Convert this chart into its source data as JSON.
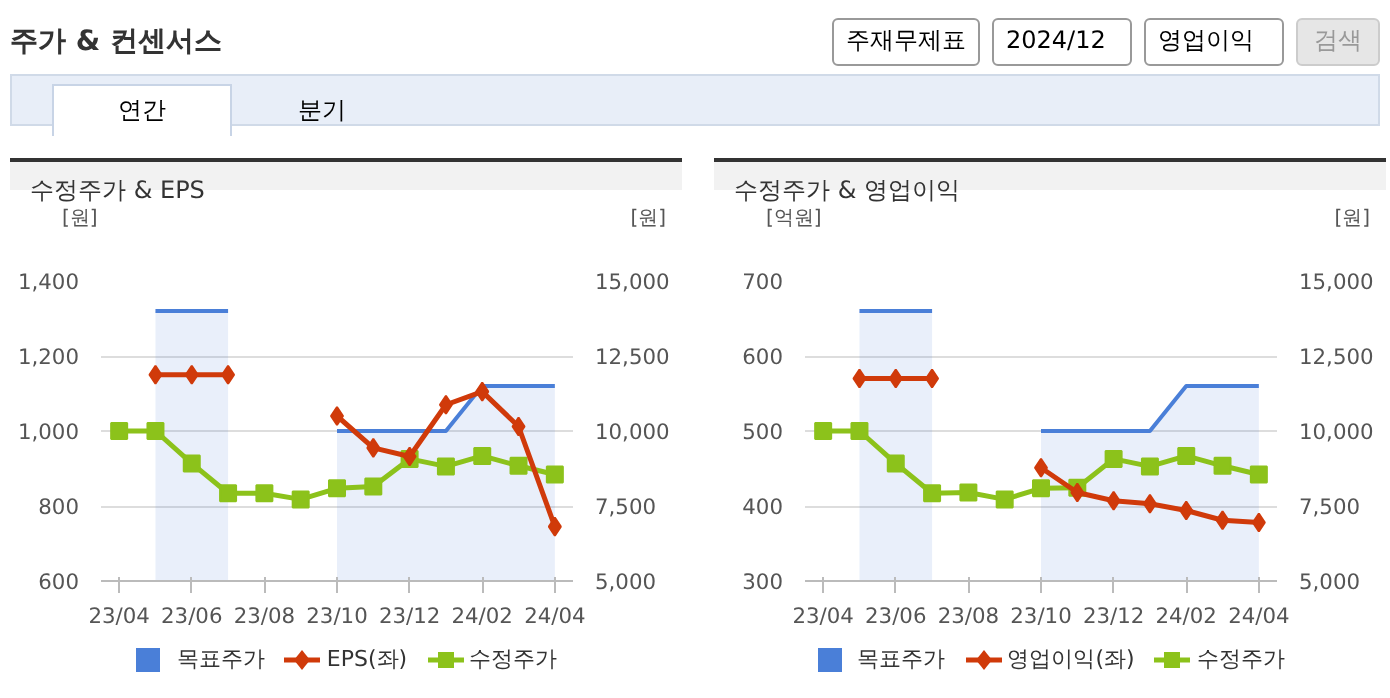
{
  "chart_data": [
    {
      "type": "other",
      "title": "주가 & 컨센서스",
      "annotations": [
        "주재무제표",
        "2024/12",
        "영업이익",
        "검색",
        "연간",
        "분기"
      ]
    },
    {
      "type": "line",
      "title": "수정주가 & EPS",
      "ylabel": "[원]",
      "y2label": "[원]",
      "categories": [
        "23/04",
        null,
        "23/06",
        null,
        "23/08",
        null,
        "23/10",
        null,
        "23/12",
        null,
        "24/02",
        null,
        "24/04"
      ],
      "ylim": [
        600,
        1400
      ],
      "yticks": [
        600,
        800,
        {
          "value": 1000,
          "label": "1,000"
        },
        {
          "value": 1200,
          "label": "1,200"
        },
        {
          "value": 1400,
          "label": "1,400"
        }
      ],
      "y2lim": [
        5000,
        15000
      ],
      "y2ticks": [
        {
          "value": 5000,
          "label": "5,000"
        },
        {
          "value": 7500,
          "label": "7,500"
        },
        {
          "value": 10000,
          "label": "10,000"
        },
        {
          "value": 12500,
          "label": "12,500"
        },
        {
          "value": 15000,
          "label": "15,000"
        }
      ],
      "grid": "y",
      "legend": "bottom",
      "series": [
        {
          "name": "목표주가",
          "type": "area",
          "color": "#4a7fd8",
          "axis": "y2",
          "values": [
            null,
            14000,
            14000,
            14000,
            null,
            null,
            10000,
            10000,
            10000,
            10000,
            11500,
            11500,
            11500
          ]
        },
        {
          "name": "EPS(좌)",
          "type": "line",
          "color": "#d03a0a",
          "marker": "diamond",
          "values": [
            null,
            1150,
            1150,
            1150,
            null,
            null,
            1040,
            955,
            932,
            1070,
            1105,
            1012,
            745
          ]
        },
        {
          "name": "수정주가",
          "type": "line",
          "color": "#8cc21b",
          "marker": "square",
          "axis": "y2",
          "values": [
            10000,
            10000,
            8920,
            7925,
            7925,
            7720,
            8090,
            8150,
            9070,
            8820,
            9170,
            8840,
            8550
          ]
        }
      ]
    },
    {
      "type": "line",
      "title": "수정주가 & 영업이익",
      "ylabel": "[억원]",
      "y2label": "[원]",
      "categories": [
        "23/04",
        null,
        "23/06",
        null,
        "23/08",
        null,
        "23/10",
        null,
        "23/12",
        null,
        "24/02",
        null,
        "24/04"
      ],
      "ylim": [
        300,
        700
      ],
      "yticks": [
        300,
        400,
        500,
        600,
        700
      ],
      "y2lim": [
        5000,
        15000
      ],
      "y2ticks": [
        {
          "value": 5000,
          "label": "5,000"
        },
        {
          "value": 7500,
          "label": "7,500"
        },
        {
          "value": 10000,
          "label": "10,000"
        },
        {
          "value": 12500,
          "label": "12,500"
        },
        {
          "value": 15000,
          "label": "15,000"
        }
      ],
      "grid": "y",
      "legend": "bottom",
      "series": [
        {
          "name": "목표주가",
          "type": "area",
          "color": "#4a7fd8",
          "axis": "y2",
          "values": [
            null,
            14000,
            14000,
            14000,
            null,
            null,
            10000,
            10000,
            10000,
            10000,
            11500,
            11500,
            11500
          ]
        },
        {
          "name": "영업이익(좌)",
          "type": "line",
          "color": "#d03a0a",
          "marker": "diamond",
          "values": [
            null,
            570,
            570,
            570,
            null,
            null,
            451,
            418,
            407,
            403,
            394,
            381,
            378
          ]
        },
        {
          "name": "수정주가",
          "type": "line",
          "color": "#8cc21b",
          "marker": "square",
          "axis": "y2",
          "values": [
            10000,
            10000,
            8920,
            7925,
            7950,
            7720,
            8090,
            8110,
            9070,
            8820,
            9170,
            8840,
            8550
          ]
        }
      ]
    }
  ]
}
